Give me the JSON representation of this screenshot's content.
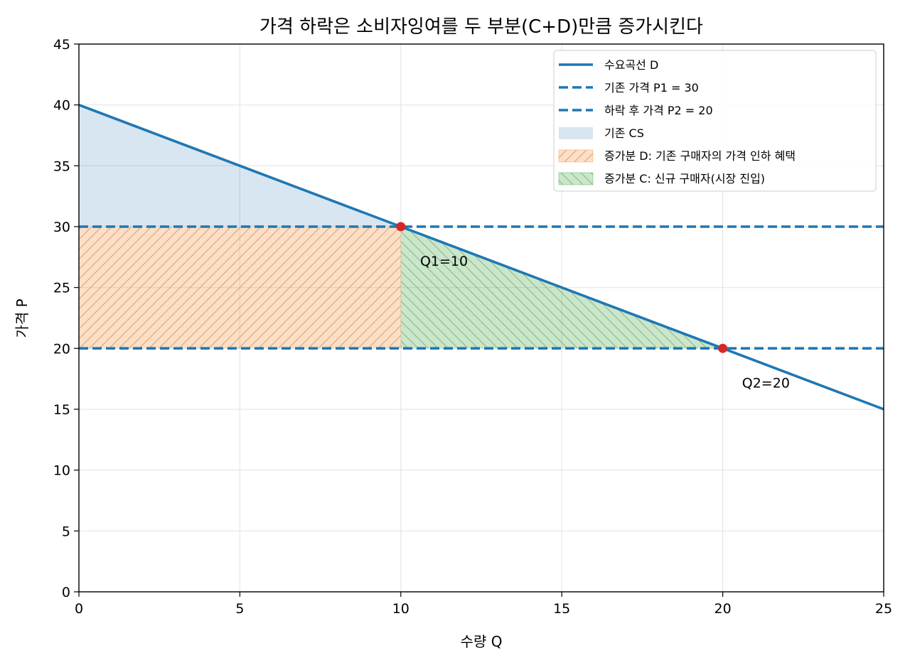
{
  "chart_data": {
    "type": "line",
    "title": "가격 하락은 소비자잉여를 두 부분(C+D)만큼 증가시킨다",
    "xlabel": "수량 Q",
    "ylabel": "가격 P",
    "xlim": [
      0,
      25
    ],
    "ylim": [
      0,
      45
    ],
    "xticks": [
      0,
      5,
      10,
      15,
      20,
      25
    ],
    "yticks": [
      0,
      5,
      10,
      15,
      20,
      25,
      30,
      35,
      40,
      45
    ],
    "grid": true,
    "legend_position": "top-right",
    "series": [
      {
        "name": "수요곡선 D",
        "style": "solid",
        "color": "#1f77b4",
        "x": [
          0,
          25
        ],
        "y": [
          40,
          15
        ]
      },
      {
        "name": "기존 가격 P1 = 30",
        "style": "dashed",
        "color": "#1f77b4",
        "x": [
          0,
          25
        ],
        "y": [
          30,
          30
        ]
      },
      {
        "name": "하락 후 가격 P2 = 20",
        "style": "dashed",
        "color": "#1f77b4",
        "x": [
          0,
          25
        ],
        "y": [
          20,
          20
        ]
      }
    ],
    "areas": [
      {
        "name": "기존 CS",
        "color": "#1f77b4",
        "hatch": "none",
        "polygon": [
          [
            0,
            40
          ],
          [
            10,
            30
          ],
          [
            0,
            30
          ]
        ]
      },
      {
        "name": "증가분 D: 기존 구매자의 가격 인하 혜택",
        "color": "#ff7f0e",
        "hatch": "forward",
        "polygon": [
          [
            0,
            30
          ],
          [
            10,
            30
          ],
          [
            10,
            20
          ],
          [
            0,
            20
          ]
        ]
      },
      {
        "name": "증가분 C: 신규 구매자(시장 진입)",
        "color": "#2ca02c",
        "hatch": "backward",
        "polygon": [
          [
            10,
            30
          ],
          [
            20,
            20
          ],
          [
            10,
            20
          ]
        ]
      }
    ],
    "points": [
      {
        "x": 10,
        "y": 30,
        "color": "#d62728"
      },
      {
        "x": 20,
        "y": 20,
        "color": "#d62728"
      }
    ],
    "annotations": [
      {
        "text": "Q1=10",
        "x": 10.6,
        "y": 27.2
      },
      {
        "text": "Q2=20",
        "x": 20.6,
        "y": 17.2
      }
    ]
  }
}
